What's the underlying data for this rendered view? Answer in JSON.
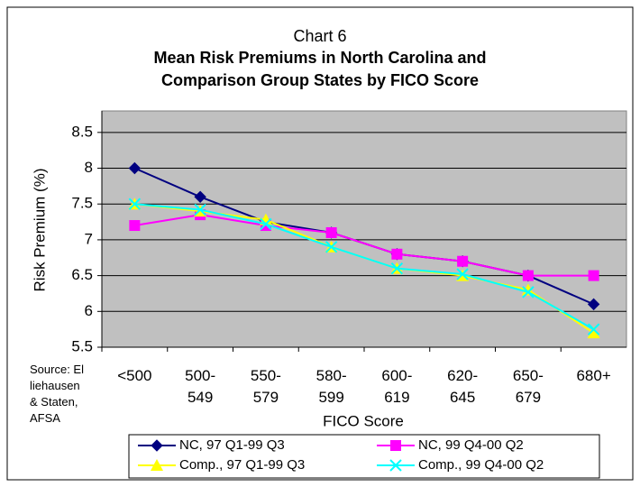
{
  "chart_data": {
    "type": "line",
    "title": "Chart 6",
    "subtitle": "Mean Risk Premiums in North Carolina and Comparison Group States by FICO Score",
    "source": "Source: Elliehausen & Staten, AFSA",
    "x_label": "FICO Score",
    "y_label": "Risk Premium (%)",
    "categories": [
      "<500",
      "500- 549",
      "550- 579",
      "580- 599",
      "600- 619",
      "620- 645",
      "650- 679",
      "680+"
    ],
    "ylim": [
      5.5,
      8.8
    ],
    "yticks": [
      5.5,
      6,
      6.5,
      7,
      7.5,
      8,
      8.5
    ],
    "grid": true,
    "legend": "bottom",
    "series": [
      {
        "name": "NC, 97 Q1-99 Q3",
        "color": "#000080",
        "marker": "diamond",
        "values": [
          8.0,
          7.6,
          7.25,
          7.1,
          6.8,
          6.7,
          6.5,
          6.1
        ]
      },
      {
        "name": "NC, 99 Q4-00 Q2",
        "color": "#ff00ff",
        "marker": "square",
        "values": [
          7.2,
          7.35,
          7.2,
          7.1,
          6.8,
          6.7,
          6.5,
          6.5
        ]
      },
      {
        "name": "Comp., 97 Q1-99 Q3",
        "color": "#ffff00",
        "marker": "triangle",
        "values": [
          7.5,
          7.4,
          7.28,
          6.9,
          6.6,
          6.5,
          6.3,
          5.7
        ]
      },
      {
        "name": "Comp., 99 Q4-00 Q2",
        "color": "#00ffff",
        "marker": "x",
        "values": [
          7.5,
          7.42,
          7.22,
          6.9,
          6.6,
          6.52,
          6.27,
          5.75
        ]
      }
    ]
  }
}
